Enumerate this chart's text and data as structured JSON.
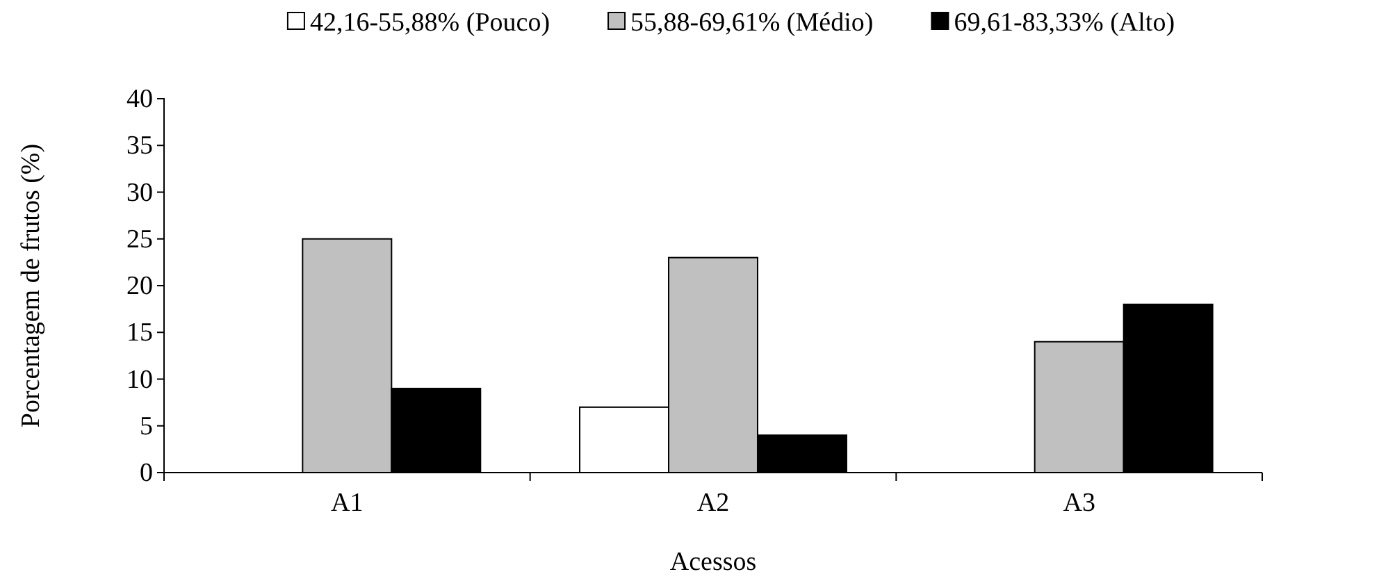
{
  "chart_data": {
    "type": "bar",
    "xlabel": "Acessos",
    "ylabel": "Porcentagem de frutos (%)",
    "categories": [
      "A1",
      "A2",
      "A3"
    ],
    "series": [
      {
        "name": "42,16-55,88% (Pouco)",
        "color": "#ffffff",
        "values": [
          0,
          7,
          0
        ]
      },
      {
        "name": "55,88-69,61% (Médio)",
        "color": "#c0c0c0",
        "values": [
          25,
          23,
          14
        ]
      },
      {
        "name": "69,61-83,33% (Alto)",
        "color": "#000000",
        "values": [
          9,
          4,
          18
        ]
      }
    ],
    "ylim": [
      0,
      40
    ],
    "yticks": [
      0,
      5,
      10,
      15,
      20,
      25,
      30,
      35,
      40
    ],
    "grid": false,
    "legend": "top"
  }
}
